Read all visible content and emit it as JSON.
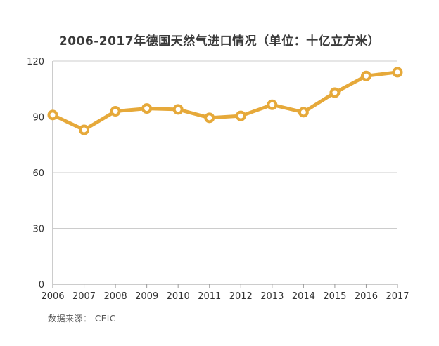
{
  "chart_data": {
    "type": "line",
    "title": "2006-2017年德国天然气进口情况（单位：十亿立方米）",
    "source": "数据来源： CEIC",
    "xlabel": "",
    "ylabel": "",
    "categories": [
      "2006",
      "2007",
      "2008",
      "2009",
      "2010",
      "2011",
      "2012",
      "2013",
      "2014",
      "2015",
      "2016",
      "2017"
    ],
    "series": [
      {
        "values": [
          91,
          83,
          93,
          94.5,
          94,
          89.5,
          90.5,
          96.5,
          92.5,
          103,
          112,
          114
        ]
      }
    ],
    "ylim": [
      0,
      120
    ],
    "yticks": [
      0,
      30,
      60,
      90,
      120
    ],
    "grid": true,
    "legend": "none",
    "colors": {
      "line": "#e6a93a",
      "grid": "#cccccc",
      "axis": "#999999",
      "marker_fill": "#ffffff"
    }
  }
}
